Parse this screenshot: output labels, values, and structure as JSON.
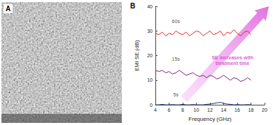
{
  "panel_labels": [
    "A",
    "B"
  ],
  "chart_data": {
    "type": "line",
    "x_label": "Frequency (GHz)",
    "y_label": "EMI SE (dB)",
    "x": [
      4,
      4.5,
      5,
      5.5,
      6,
      6.5,
      7,
      7.5,
      8,
      8.5,
      9,
      9.5,
      10,
      10.5,
      11,
      11.5,
      12,
      12.5,
      13,
      13.5,
      14,
      14.5,
      15,
      15.5,
      16,
      16.5,
      17,
      17.5,
      18
    ],
    "series": [
      {
        "name": "60s",
        "color": "#e3241b",
        "values": [
          29,
          28.5,
          29.5,
          28,
          29,
          28.5,
          30,
          29,
          28.5,
          29.5,
          28,
          29,
          30,
          29.5,
          28,
          29,
          30,
          28.5,
          29,
          30,
          28,
          29.5,
          29,
          30.5,
          29,
          28,
          29.5,
          30,
          28.5
        ]
      },
      {
        "name": "15s",
        "color": "#7b1f7e",
        "values": [
          14,
          13.5,
          14,
          13,
          13.5,
          12.5,
          13,
          14,
          13,
          12,
          12.5,
          13,
          12,
          11.5,
          12,
          11,
          12,
          11.5,
          10.5,
          11,
          12,
          11,
          10,
          11,
          10.5,
          9.5,
          10,
          11,
          10
        ]
      },
      {
        "name": "5s",
        "color": "#1c2a6e",
        "values": [
          0,
          0,
          0.2,
          0,
          0,
          0.1,
          0,
          0,
          0.2,
          0,
          0,
          0.1,
          0,
          0,
          0,
          0.2,
          0.3,
          0.5,
          0.8,
          1,
          0.6,
          0.3,
          0.2,
          0,
          0.1,
          0,
          0,
          0.1,
          0
        ]
      }
    ],
    "xlim": [
      4,
      20
    ],
    "xticks": [
      4,
      6,
      8,
      10,
      12,
      14,
      16,
      18,
      20
    ],
    "ylim": [
      0,
      40
    ],
    "yticks": [
      0,
      10,
      20,
      30,
      40
    ],
    "grid": false,
    "annotations": [
      {
        "text": "60s",
        "x": 7,
        "y": 34
      },
      {
        "text": "15s",
        "x": 7,
        "y": 18.5
      },
      {
        "text": "5s",
        "x": 7,
        "y": 4
      },
      {
        "text": "SE increases with\ntreatment time",
        "x": 15.3,
        "y": 18,
        "color": "#cc33cc"
      }
    ]
  }
}
